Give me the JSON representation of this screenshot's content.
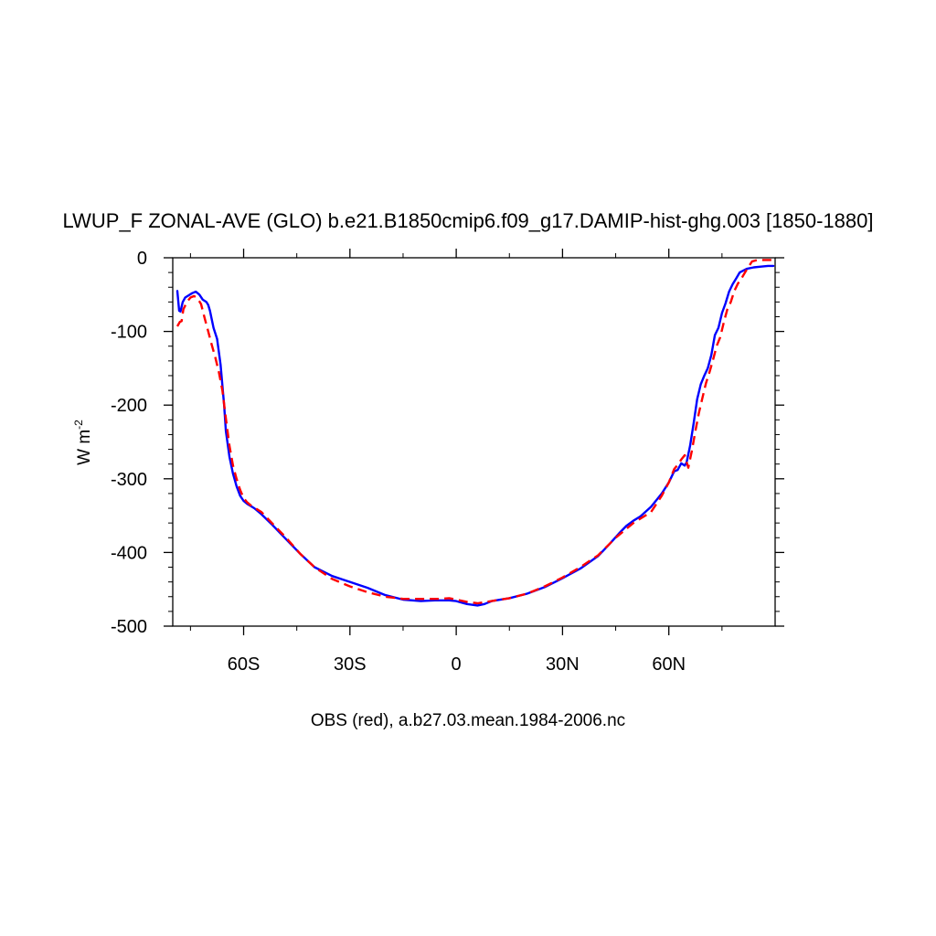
{
  "chart_data": {
    "type": "line",
    "title": "LWUP_F ZONAL-AVE (GLO) b.e21.B1850cmip6.f09_g17.DAMIP-hist-ghg.003 [1850-1880]",
    "ylabel": "W m",
    "ylabel_superscript": "-2",
    "xlabel": "OBS (red), a.b27.03.mean.1984-2006.nc",
    "xlim": [
      -80,
      90
    ],
    "ylim": [
      -500,
      0
    ],
    "xticks": [
      {
        "value": -60,
        "label": "60S"
      },
      {
        "value": -30,
        "label": "30S"
      },
      {
        "value": 0,
        "label": "0"
      },
      {
        "value": 30,
        "label": "30N"
      },
      {
        "value": 60,
        "label": "60N"
      }
    ],
    "yticks": [
      {
        "value": 0,
        "label": "0"
      },
      {
        "value": -100,
        "label": "-100"
      },
      {
        "value": -200,
        "label": "-200"
      },
      {
        "value": -300,
        "label": "-300"
      },
      {
        "value": -400,
        "label": "-400"
      },
      {
        "value": -500,
        "label": "-500"
      }
    ],
    "series": [
      {
        "color": "#0000ff",
        "dash": "solid",
        "x": [
          -78.7,
          -78.2,
          -77.8,
          -77.2,
          -76.5,
          -75.5,
          -74.5,
          -73.5,
          -72.5,
          -71.5,
          -70.5,
          -70.0,
          -69.5,
          -68.5,
          -67.5,
          -66.5,
          -65.5,
          -65.0,
          -64.0,
          -63.0,
          -62.0,
          -61.0,
          -60.0,
          -59.0,
          -58.0,
          -57.0,
          -55.0,
          -52.0,
          -48.0,
          -44.0,
          -40.0,
          -35.0,
          -30.0,
          -25.0,
          -20.0,
          -15.0,
          -10.0,
          -6.0,
          -2.0,
          0.0,
          3.0,
          6.0,
          8.0,
          10.0,
          15.0,
          20.0,
          25.0,
          30.0,
          35.0,
          40.0,
          43.0,
          46.0,
          48.0,
          50.0,
          52.0,
          55.0,
          58.0,
          60.0,
          61.5,
          62.5,
          63.5,
          64.5,
          65.0,
          66.0,
          67.0,
          68.0,
          69.0,
          70.0,
          71.0,
          72.0,
          73.0,
          74.0,
          75.0,
          76.0,
          77.0,
          78.0,
          79.0,
          80.0,
          82.0,
          84.0,
          86.0,
          88.0,
          89.5
        ],
        "y": [
          -45,
          -72,
          -73,
          -60,
          -54,
          -51,
          -48,
          -46,
          -50,
          -57,
          -60,
          -64,
          -72,
          -95,
          -110,
          -145,
          -200,
          -235,
          -270,
          -293,
          -310,
          -323,
          -330,
          -334,
          -337,
          -340,
          -348,
          -362,
          -382,
          -402,
          -420,
          -432,
          -440,
          -448,
          -458,
          -464,
          -466,
          -465,
          -465,
          -466,
          -470,
          -472,
          -470,
          -466,
          -462,
          -456,
          -447,
          -435,
          -422,
          -405,
          -390,
          -374,
          -364,
          -357,
          -351,
          -338,
          -320,
          -305,
          -290,
          -288,
          -279,
          -282,
          -278,
          -255,
          -225,
          -192,
          -172,
          -160,
          -150,
          -132,
          -105,
          -95,
          -75,
          -62,
          -46,
          -36,
          -28,
          -20,
          -15,
          -13,
          -12,
          -11,
          -11
        ]
      },
      {
        "color": "#ff0000",
        "dash": "dashed",
        "x": [
          -78.7,
          -78.0,
          -77.5,
          -77.0,
          -76.0,
          -75.0,
          -74.0,
          -73.0,
          -72.0,
          -71.0,
          -70.0,
          -69.0,
          -68.0,
          -67.0,
          -66.0,
          -65.0,
          -64.0,
          -63.0,
          -62.0,
          -61.0,
          -60.0,
          -59.0,
          -58.0,
          -57.0,
          -55.0,
          -52.0,
          -48.0,
          -44.0,
          -40.0,
          -35.0,
          -30.0,
          -25.0,
          -20.0,
          -15.0,
          -10.0,
          -5.0,
          -2.0,
          0.0,
          3.0,
          6.0,
          10.0,
          15.0,
          20.0,
          25.0,
          30.0,
          35.0,
          40.0,
          45.0,
          50.0,
          55.0,
          58.0,
          60.0,
          61.5,
          62.5,
          63.5,
          64.5,
          65.5,
          66.5,
          67.5,
          68.5,
          69.5,
          70.5,
          71.5,
          72.5,
          73.5,
          74.5,
          75.5,
          76.5,
          77.5,
          78.5,
          79.5,
          80.5,
          81.5,
          82.5,
          83.5,
          85.0,
          87.0,
          89.5
        ],
        "y": [
          -93,
          -87,
          -86,
          -70,
          -60,
          -54,
          -52,
          -55,
          -63,
          -82,
          -100,
          -118,
          -135,
          -155,
          -180,
          -218,
          -255,
          -282,
          -300,
          -315,
          -326,
          -332,
          -336,
          -339,
          -345,
          -360,
          -380,
          -402,
          -420,
          -436,
          -446,
          -454,
          -460,
          -463,
          -463,
          -463,
          -462,
          -464,
          -467,
          -469,
          -466,
          -462,
          -456,
          -446,
          -434,
          -420,
          -404,
          -380,
          -360,
          -345,
          -323,
          -305,
          -287,
          -281,
          -274,
          -268,
          -285,
          -262,
          -235,
          -210,
          -190,
          -170,
          -155,
          -138,
          -120,
          -108,
          -88,
          -70,
          -60,
          -45,
          -35,
          -28,
          -20,
          -12,
          -5,
          -3,
          -3,
          -3
        ]
      }
    ]
  }
}
